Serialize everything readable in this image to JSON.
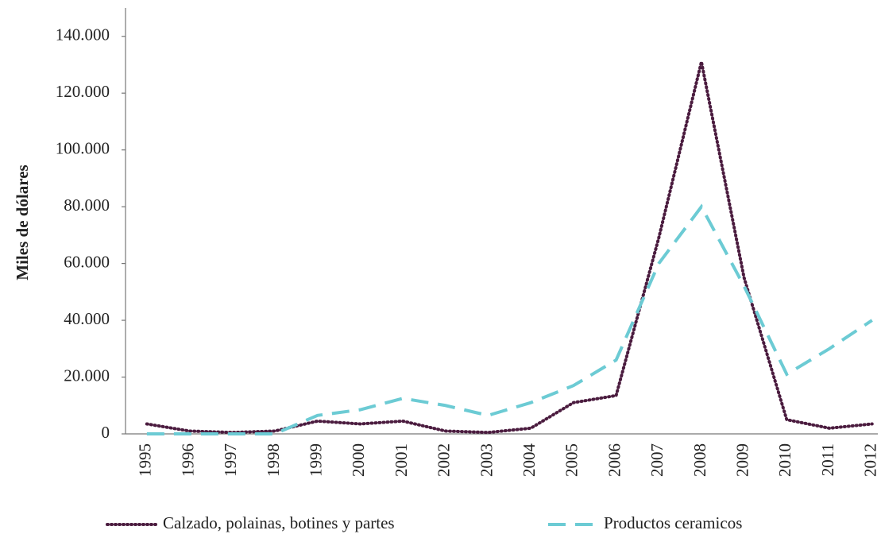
{
  "chart_data": {
    "type": "line",
    "y_label": "Miles de dólares",
    "categories": [
      "1995",
      "1996",
      "1997",
      "1998",
      "1999",
      "2000",
      "2001",
      "2002",
      "2003",
      "2004",
      "2005",
      "2006",
      "2007",
      "2008",
      "2009",
      "2010",
      "2011",
      "2012"
    ],
    "series": [
      {
        "name": "Calzado, polainas, botines y partes",
        "color": "#4b1c3f",
        "style": "dotted",
        "values": [
          3500,
          1000,
          500,
          1000,
          4500,
          3500,
          4500,
          1000,
          500,
          2000,
          11000,
          13500,
          69000,
          131000,
          55000,
          5000,
          2000,
          3500
        ]
      },
      {
        "name": "Productos ceramicos",
        "color": "#6ccbd4",
        "style": "dashed",
        "values": [
          0,
          0,
          0,
          0,
          6500,
          8500,
          12500,
          10000,
          6500,
          11000,
          17000,
          26000,
          60000,
          80000,
          52000,
          21000,
          30000,
          40000
        ]
      }
    ],
    "ylim": [
      0,
      150000
    ],
    "yticks": [
      {
        "value": 0,
        "label": "0"
      },
      {
        "value": 20000,
        "label": "20.000"
      },
      {
        "value": 40000,
        "label": "40.000"
      },
      {
        "value": 60000,
        "label": "60.000"
      },
      {
        "value": 80000,
        "label": "80.000"
      },
      {
        "value": 100000,
        "label": "100.000"
      },
      {
        "value": 120000,
        "label": "120.000"
      },
      {
        "value": 140000,
        "label": "140.000"
      }
    ],
    "grid": false,
    "legend": "bottom"
  }
}
